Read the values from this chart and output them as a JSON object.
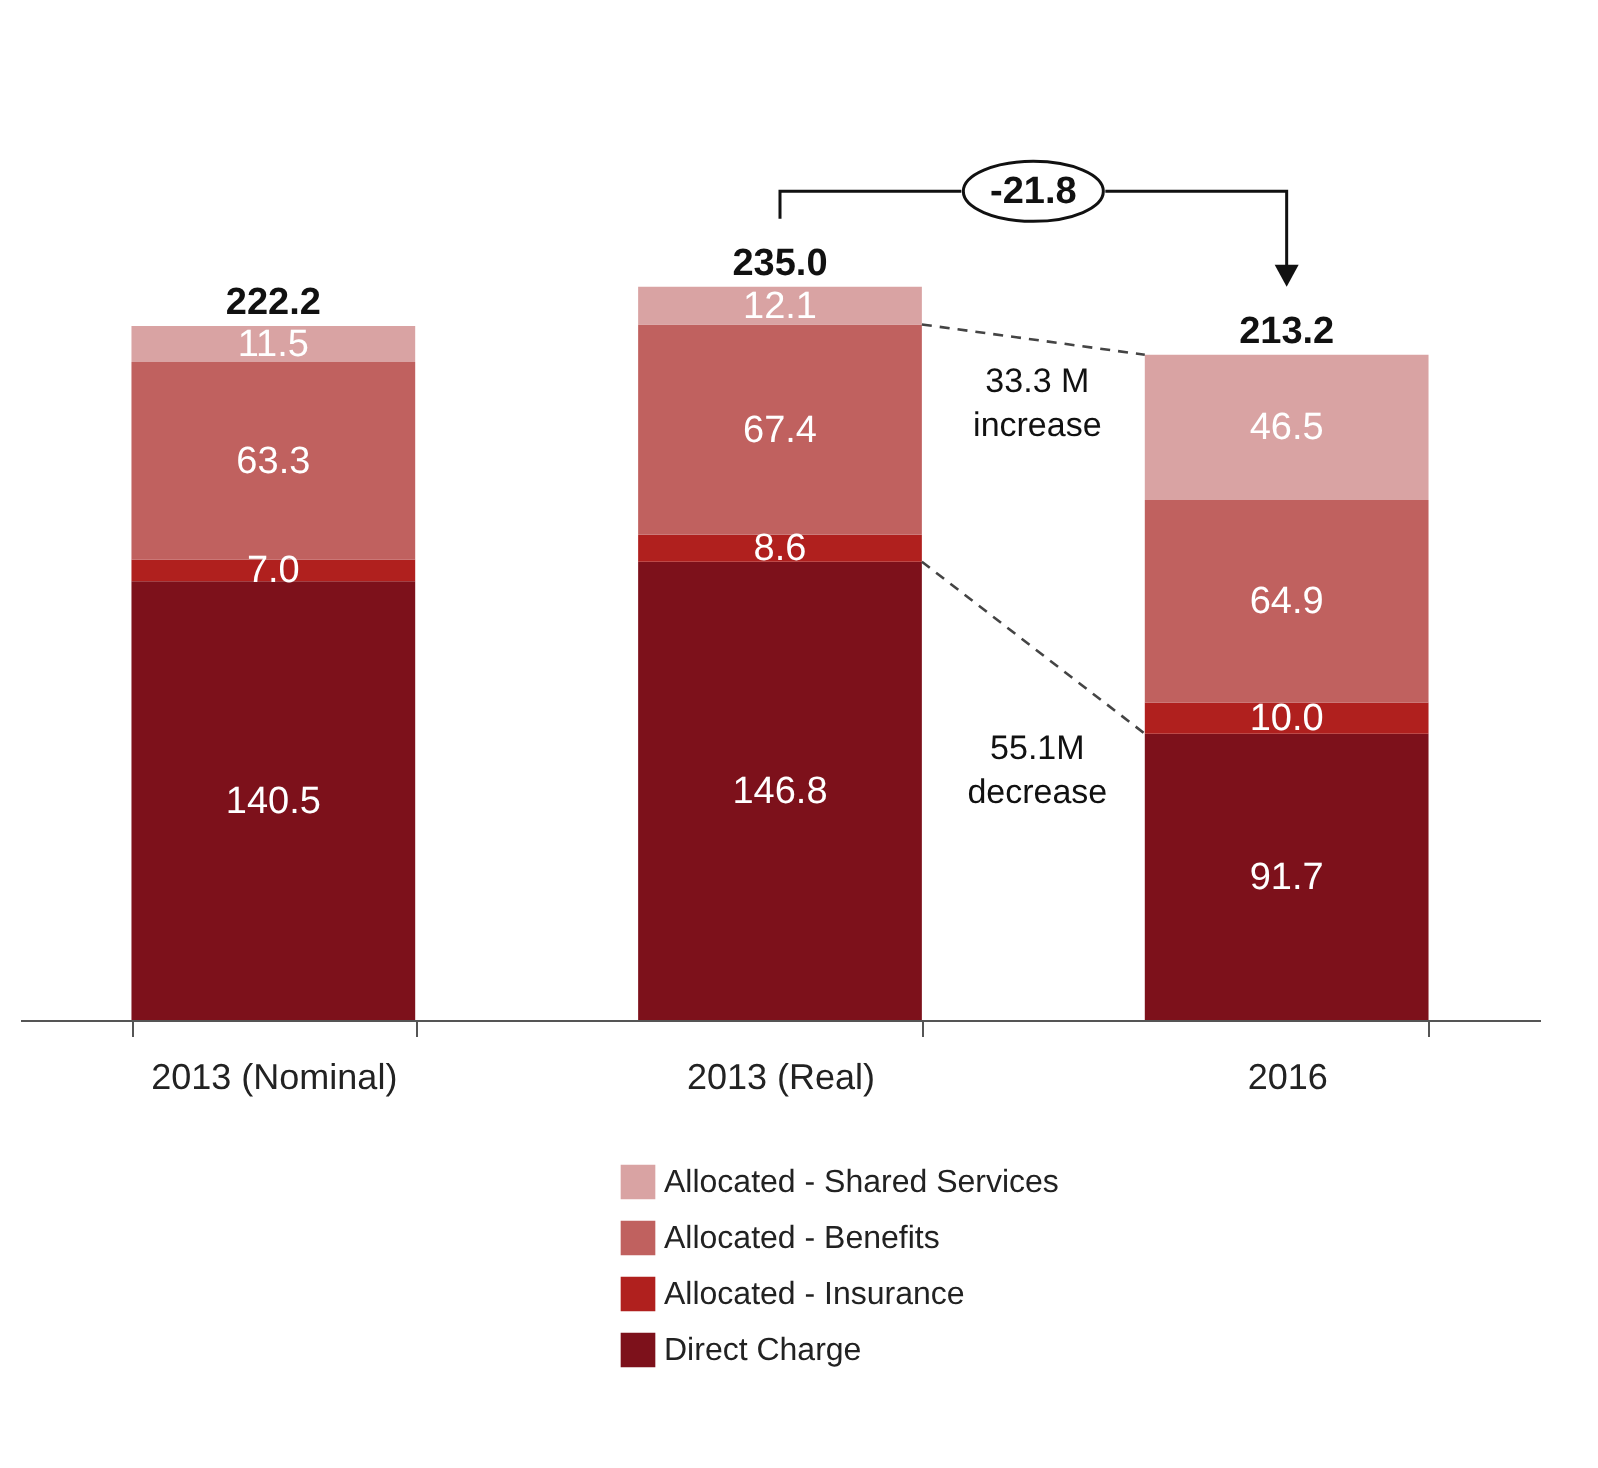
{
  "chart_data": {
    "type": "bar",
    "stacked": true,
    "legend": "bottom",
    "categories": [
      "2013 (Nominal)",
      "2013 (Real)",
      "2016"
    ],
    "series": [
      {
        "name": "Direct Charge",
        "color": "#7d111b",
        "values": [
          140.5,
          146.8,
          91.7
        ],
        "value_labels": [
          "140.5",
          "146.8",
          "91.7"
        ]
      },
      {
        "name": "Allocated - Insurance",
        "color": "#b0201e",
        "values": [
          7.0,
          8.6,
          10.0
        ],
        "value_labels": [
          "7.0",
          "8.6",
          "10.0"
        ]
      },
      {
        "name": "Allocated - Benefits",
        "color": "#c0615f",
        "values": [
          63.3,
          67.4,
          64.9
        ],
        "value_labels": [
          "63.3",
          "67.4",
          "64.9"
        ]
      },
      {
        "name": "Allocated - Shared Services",
        "color": "#d9a3a3",
        "values": [
          11.5,
          12.1,
          46.5
        ],
        "value_labels": [
          "11.5",
          "12.1",
          "46.5"
        ]
      }
    ],
    "totals": [
      "222.2",
      "235.0",
      "213.2"
    ],
    "annotations": [
      "-21.8",
      "33.3 M increase",
      "55.1M decrease"
    ]
  }
}
